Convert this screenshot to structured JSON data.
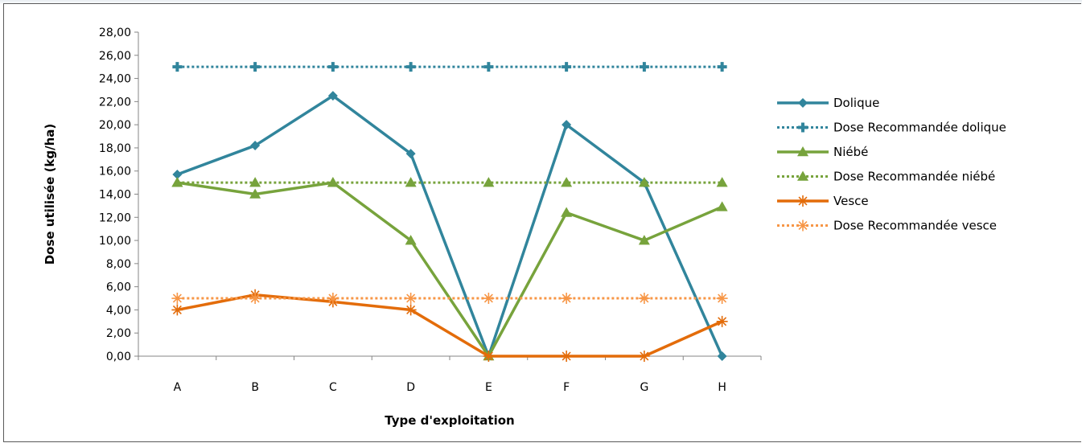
{
  "chart_data": {
    "type": "line",
    "title": "",
    "xlabel": "Type d'exploitation",
    "ylabel": "Dose utilisée (kg/ha)",
    "ylim": [
      0,
      28
    ],
    "yticks": [
      "0,00",
      "2,00",
      "4,00",
      "6,00",
      "8,00",
      "10,00",
      "12,00",
      "14,00",
      "16,00",
      "18,00",
      "20,00",
      "22,00",
      "24,00",
      "26,00",
      "28,00"
    ],
    "categories": [
      "A",
      "B",
      "C",
      "D",
      "E",
      "F",
      "G",
      "H"
    ],
    "grid": false,
    "legend_position": "right",
    "series": [
      {
        "name": "Dolique",
        "values": [
          15.7,
          18.2,
          22.5,
          17.5,
          0,
          20,
          15,
          0
        ],
        "color": "#31859c",
        "dash": "solid",
        "marker": "diamond"
      },
      {
        "name": "Dose Recommandée dolique",
        "values": [
          25,
          25,
          25,
          25,
          25,
          25,
          25,
          25
        ],
        "color": "#31859c",
        "dash": "dotted",
        "marker": "cross"
      },
      {
        "name": "Niébé",
        "values": [
          15,
          14,
          15,
          10,
          0,
          12.4,
          10,
          12.9
        ],
        "color": "#77a33c",
        "dash": "solid",
        "marker": "triangle"
      },
      {
        "name": "Dose Recommandée niébé",
        "values": [
          15,
          15,
          15,
          15,
          15,
          15,
          15,
          15
        ],
        "color": "#77a33c",
        "dash": "dotted",
        "marker": "triangle"
      },
      {
        "name": "Vesce",
        "values": [
          4,
          5.3,
          4.7,
          4,
          0,
          0,
          0,
          3
        ],
        "color": "#e36c0a",
        "dash": "solid",
        "marker": "star"
      },
      {
        "name": "Dose Recommandée vesce",
        "values": [
          5,
          5,
          5,
          5,
          5,
          5,
          5,
          5
        ],
        "color": "#f79646",
        "dash": "dotted",
        "marker": "star"
      }
    ]
  }
}
